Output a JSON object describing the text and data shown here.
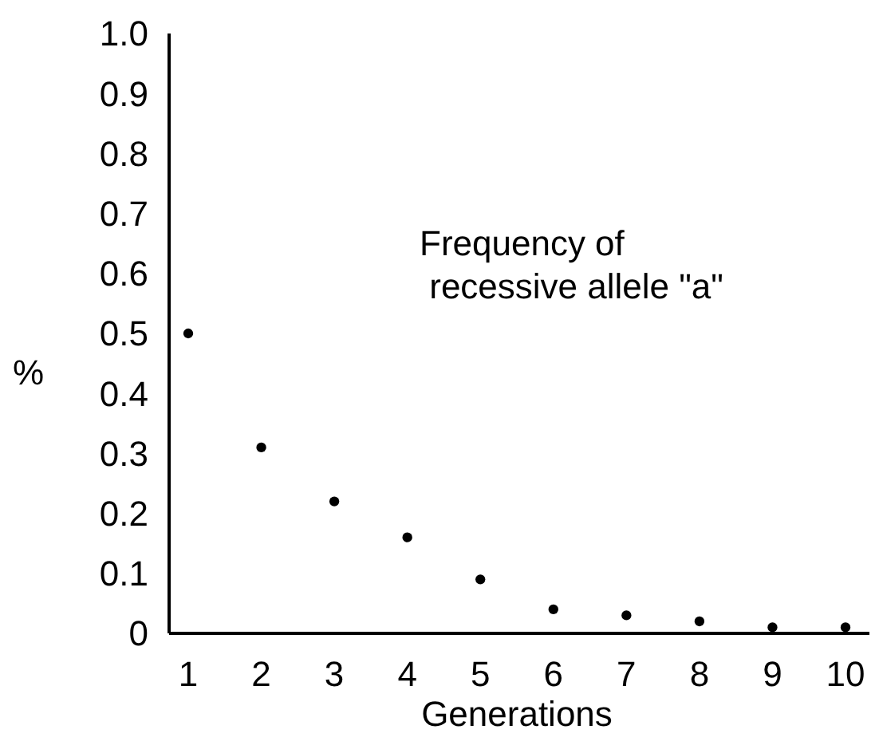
{
  "chart_data": {
    "type": "scatter",
    "xlabel": "Generations",
    "ylabel": "%",
    "annotations": [
      "Frequency of\n recessive allele \"a\""
    ],
    "categories": [
      "1",
      "2",
      "3",
      "4",
      "5",
      "6",
      "7",
      "8",
      "9",
      "10"
    ],
    "values": [
      0.5,
      0.31,
      0.22,
      0.16,
      0.09,
      0.04,
      0.03,
      0.02,
      0.01,
      0.01
    ],
    "color": "#000000",
    "marker": "circle",
    "grid": false,
    "ylim": [
      0,
      1.0
    ],
    "yticks": [
      0,
      0.1,
      0.2,
      0.3,
      0.4,
      0.5,
      0.6,
      0.7,
      0.8,
      0.9,
      {
        "value": 1.0,
        "label": "1.0"
      }
    ]
  }
}
